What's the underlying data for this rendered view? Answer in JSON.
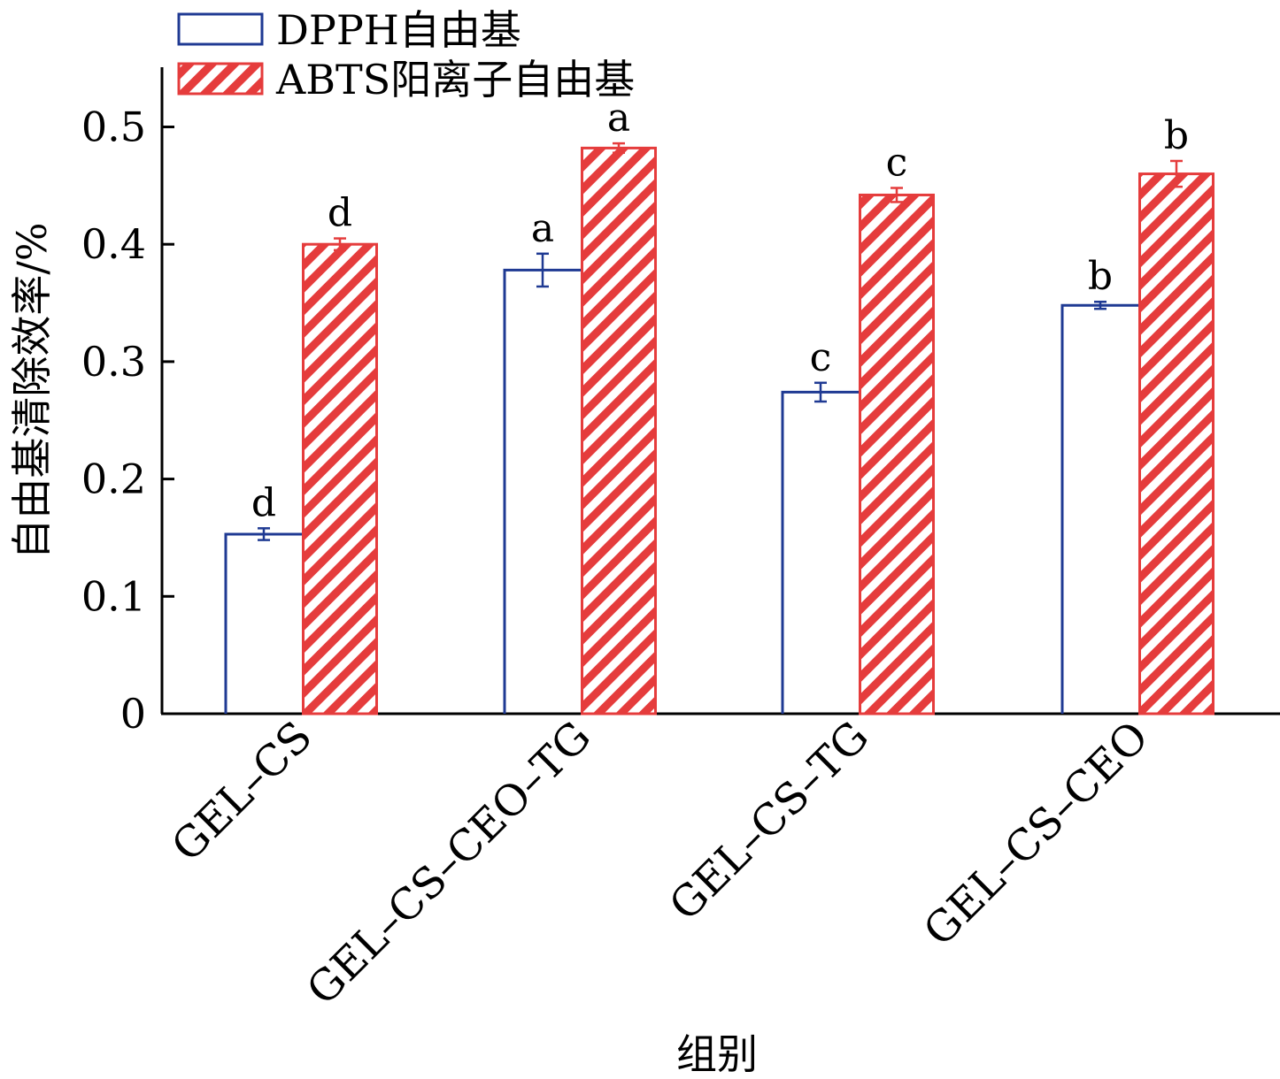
{
  "chart_data": {
    "type": "bar",
    "categories": [
      "GEL–CS",
      "GEL–CS–CEO–TG",
      "GEL–CS–TG",
      "GEL–CS–CEO"
    ],
    "xlabel": "组别",
    "ylabel": "自由基清除效率/%",
    "ylim": [
      0,
      0.55
    ],
    "yticks": [
      0,
      0.1,
      0.2,
      0.3,
      0.4,
      0.5
    ],
    "ytick_labels": [
      "0",
      "0.1",
      "0.2",
      "0.3",
      "0.4",
      "0.5"
    ],
    "legend_position": "top-left",
    "grid": false,
    "series": [
      {
        "name": "DPPH自由基",
        "style": "outline",
        "color": "#1f3a93",
        "values": [
          0.153,
          0.378,
          0.274,
          0.348
        ],
        "errors": [
          0.005,
          0.014,
          0.008,
          0.003
        ],
        "significance": [
          "d",
          "a",
          "c",
          "b"
        ]
      },
      {
        "name": "ABTS阳离子自由基",
        "style": "hatched",
        "color": "#e53c3c",
        "values": [
          0.4,
          0.482,
          0.442,
          0.46
        ],
        "errors": [
          0.005,
          0.004,
          0.006,
          0.011
        ],
        "significance": [
          "d",
          "a",
          "c",
          "b"
        ]
      }
    ]
  }
}
